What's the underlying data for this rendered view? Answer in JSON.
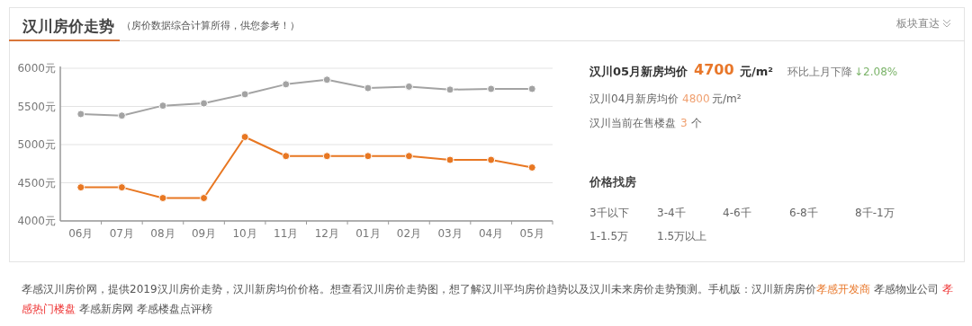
{
  "chart_data": {
    "type": "line",
    "title": "汉川房价走势",
    "subtitle": "（房价数据综合计算所得，供您参考！）",
    "categories": [
      "06月",
      "07月",
      "08月",
      "09月",
      "10月",
      "11月",
      "12月",
      "01月",
      "02月",
      "03月",
      "04月",
      "05月"
    ],
    "series": [
      {
        "color": "#a3a3a3",
        "values": [
          5400,
          5380,
          5510,
          5540,
          5660,
          5790,
          5850,
          5740,
          5760,
          5720,
          5730,
          5730
        ]
      },
      {
        "color": "#e87722",
        "values": [
          4440,
          4440,
          4300,
          4300,
          5100,
          4850,
          4850,
          4850,
          4850,
          4800,
          4800,
          4700
        ]
      }
    ],
    "ylim": [
      4000,
      6000
    ],
    "yticks": [
      {
        "value": 4000,
        "label": "4000元"
      },
      {
        "value": 4500,
        "label": "4500元"
      },
      {
        "value": 5000,
        "label": "5000元"
      },
      {
        "value": 5500,
        "label": "5500元"
      },
      {
        "value": 6000,
        "label": "6000元"
      }
    ],
    "grid": "y",
    "marker": "circle",
    "annotations": [
      "汉川05月新房均价",
      "4700",
      "元/m²",
      "环比上月下降",
      "↓2.08%",
      "汉川04月新房均价",
      "4800",
      "元/m²",
      "汉川当前在售楼盘",
      "3",
      "个",
      "价格找房",
      "3千以下",
      "3-4千",
      "4-6千",
      "6-8千",
      "8千-1万",
      "1-1.5万",
      "1.5万以上",
      "板块直达",
      "孝感汉川房价网，提供2019汉川房价走势，汉川新房均价价格。想查看汉川房价走势图，想了解汉川平均房价趋势以及汉川未来房价走势预测。手机版：汉川新房房价",
      "孝感开发商",
      "孝感物业公司",
      "孝感热门楼盘",
      "孝感新房网",
      "孝感楼盘点评榜"
    ]
  }
}
